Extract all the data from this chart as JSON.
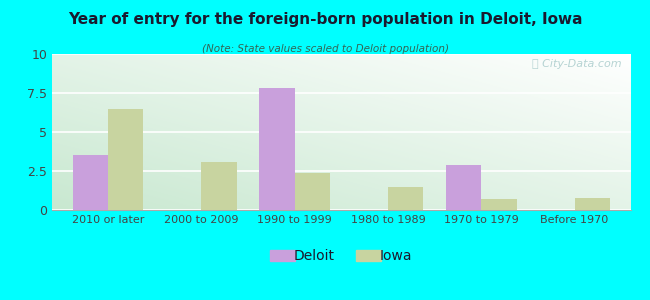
{
  "title": "Year of entry for the foreign-born population in Deloit, Iowa",
  "subtitle": "(Note: State values scaled to Deloit population)",
  "categories": [
    "2010 or later",
    "2000 to 2009",
    "1990 to 1999",
    "1980 to 1989",
    "1970 to 1979",
    "Before 1970"
  ],
  "deloit_values": [
    3.5,
    0.0,
    7.8,
    0.0,
    2.9,
    0.0
  ],
  "iowa_values": [
    6.5,
    3.1,
    2.4,
    1.5,
    0.7,
    0.8
  ],
  "deloit_color": "#c9a0dc",
  "iowa_color": "#c8d4a0",
  "ylim": [
    0,
    10
  ],
  "yticks": [
    0,
    2.5,
    5,
    7.5,
    10
  ],
  "bar_width": 0.38,
  "background_color": "#00ffff",
  "gradient_colors": [
    "#b8e8d8",
    "#ffffff"
  ],
  "legend_deloit": "Deloit",
  "legend_iowa": "Iowa",
  "watermark": "ⓘ City-Data.com",
  "title_color": "#1a1a2e",
  "subtitle_color": "#336655",
  "tick_color": "#444444"
}
